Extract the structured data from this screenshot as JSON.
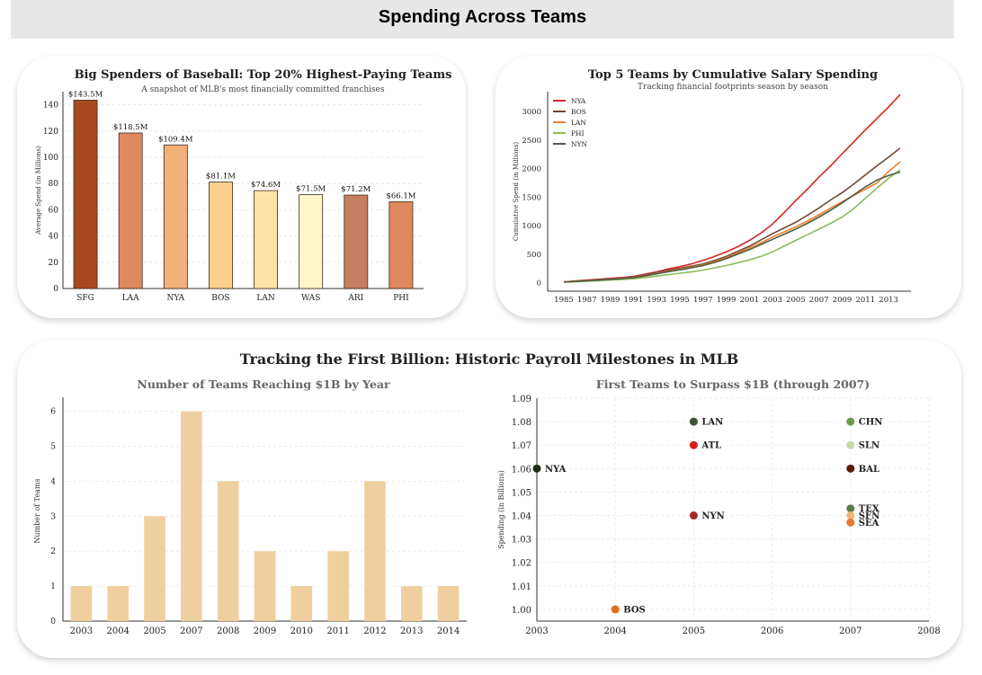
{
  "banner": {
    "title": "Spending Across Teams"
  },
  "section2": {
    "title": "Tracking the First Billion: Historic Payroll Milestones in MLB"
  },
  "chart_data": [
    {
      "id": "top-spenders",
      "type": "bar",
      "title": "Big Spenders of Baseball: Top 20% Highest-Paying Teams",
      "subtitle": "A snapshot of MLB's most financially committed franchises",
      "xlabel": "",
      "ylabel": "Average Spend (in Millions)",
      "categories": [
        "SFG",
        "LAA",
        "NYA",
        "BOS",
        "LAN",
        "WAS",
        "ARI",
        "PHI"
      ],
      "values": [
        143.5,
        118.5,
        109.4,
        81.1,
        74.6,
        71.5,
        71.2,
        66.1
      ],
      "data_labels": [
        "$143.5M",
        "$118.5M",
        "$109.4M",
        "$81.1M",
        "$74.6M",
        "$71.5M",
        "$71.2M",
        "$66.1M"
      ],
      "colors": [
        "#a84a1e",
        "#e0895e",
        "#f2b07a",
        "#fccf8c",
        "#fde3a8",
        "#fff5c8",
        "#c47f60",
        "#e0895e"
      ],
      "ylim": [
        0,
        150
      ],
      "yticks": [
        0,
        20,
        40,
        60,
        80,
        100,
        120,
        140
      ],
      "grid": true
    },
    {
      "id": "cumulative-salary",
      "type": "line",
      "title": "Top 5 Teams by Cumulative Salary Spending",
      "subtitle": "Tracking financial footprints season by season",
      "xlabel": "",
      "ylabel": "Cumulative Spend (in Millions)",
      "x": [
        1985,
        1986,
        1987,
        1988,
        1989,
        1990,
        1991,
        1992,
        1993,
        1994,
        1995,
        1996,
        1997,
        1998,
        1999,
        2000,
        2001,
        2002,
        2003,
        2004,
        2005,
        2006,
        2007,
        2008,
        2009,
        2010,
        2011,
        2012,
        2013,
        2014
      ],
      "series": [
        {
          "name": "NYA",
          "color": "#d62728",
          "values": [
            15,
            30,
            45,
            60,
            75,
            90,
            110,
            150,
            190,
            240,
            280,
            330,
            390,
            460,
            540,
            630,
            740,
            870,
            1030,
            1230,
            1440,
            1640,
            1850,
            2050,
            2260,
            2470,
            2680,
            2880,
            3080,
            3300
          ]
        },
        {
          "name": "BOS",
          "color": "#6b4a3a",
          "values": [
            12,
            25,
            38,
            52,
            65,
            78,
            95,
            130,
            175,
            215,
            250,
            290,
            330,
            390,
            460,
            550,
            640,
            750,
            860,
            960,
            1060,
            1180,
            1310,
            1450,
            1580,
            1730,
            1890,
            2050,
            2200,
            2360
          ]
        },
        {
          "name": "LAN",
          "color": "#f07f2a",
          "values": [
            12,
            24,
            36,
            48,
            60,
            72,
            88,
            120,
            160,
            200,
            235,
            270,
            310,
            370,
            440,
            520,
            610,
            700,
            800,
            890,
            980,
            1080,
            1190,
            1310,
            1420,
            1530,
            1640,
            1750,
            1950,
            2120
          ]
        },
        {
          "name": "PHI",
          "color": "#8cba5c",
          "values": [
            8,
            16,
            25,
            35,
            45,
            55,
            68,
            90,
            115,
            140,
            165,
            190,
            220,
            260,
            300,
            350,
            400,
            460,
            540,
            640,
            740,
            840,
            940,
            1040,
            1150,
            1300,
            1480,
            1660,
            1830,
            1980
          ]
        },
        {
          "name": "NYN",
          "color": "#4f5e43",
          "values": [
            11,
            22,
            34,
            46,
            58,
            70,
            86,
            118,
            155,
            192,
            225,
            260,
            300,
            355,
            420,
            500,
            580,
            670,
            760,
            850,
            940,
            1040,
            1150,
            1270,
            1400,
            1540,
            1680,
            1800,
            1880,
            1940
          ]
        }
      ],
      "xticks": [
        1985,
        1987,
        1989,
        1991,
        1993,
        1995,
        1997,
        1999,
        2001,
        2003,
        2005,
        2007,
        2009,
        2011,
        2013
      ],
      "ylim": [
        -150,
        3350
      ],
      "yticks": [
        0,
        500,
        1000,
        1500,
        2000,
        2500,
        3000
      ],
      "legend": "top-left",
      "grid": false
    },
    {
      "id": "teams-reaching-1b",
      "type": "bar",
      "title": "Number of Teams Reaching $1B by Year",
      "xlabel": "",
      "ylabel": "Number of Teams",
      "categories": [
        "2003",
        "2004",
        "2005",
        "2007",
        "2008",
        "2009",
        "2010",
        "2011",
        "2012",
        "2013",
        "2014"
      ],
      "values": [
        1,
        1,
        3,
        6,
        4,
        2,
        1,
        2,
        4,
        1,
        1
      ],
      "color": "#f0cf9e",
      "ylim": [
        0,
        6.3
      ],
      "yticks": [
        0,
        1,
        2,
        3,
        4,
        5,
        6
      ],
      "grid": true
    },
    {
      "id": "first-teams-1b",
      "type": "scatter",
      "title": "First Teams to Surpass $1B (through 2007)",
      "xlabel": "",
      "ylabel": "Spending (in Billions)",
      "points": [
        {
          "label": "NYA",
          "x": 2003,
          "y": 1.06,
          "color": "#1e2e10"
        },
        {
          "label": "BOS",
          "x": 2004,
          "y": 1.0,
          "color": "#e06f1a"
        },
        {
          "label": "LAN",
          "x": 2005,
          "y": 1.08,
          "color": "#3e5232"
        },
        {
          "label": "ATL",
          "x": 2005,
          "y": 1.07,
          "color": "#d41c20"
        },
        {
          "label": "NYN",
          "x": 2005,
          "y": 1.04,
          "color": "#a52a2a"
        },
        {
          "label": "CHN",
          "x": 2007,
          "y": 1.08,
          "color": "#6c9a48"
        },
        {
          "label": "SLN",
          "x": 2007,
          "y": 1.07,
          "color": "#c2d9a8"
        },
        {
          "label": "BAL",
          "x": 2007,
          "y": 1.06,
          "color": "#5a1806"
        },
        {
          "label": "TEX",
          "x": 2007,
          "y": 1.043,
          "color": "#5a7f46"
        },
        {
          "label": "SFN",
          "x": 2007,
          "y": 1.04,
          "color": "#f5b679"
        },
        {
          "label": "SEA",
          "x": 2007,
          "y": 1.037,
          "color": "#e8792e"
        }
      ],
      "xlim": [
        2003,
        2008
      ],
      "xticks": [
        2003,
        2004,
        2005,
        2006,
        2007,
        2008
      ],
      "ylim": [
        0.995,
        1.09
      ],
      "yticks": [
        "1.00",
        "1.01",
        "1.02",
        "1.03",
        "1.04",
        "1.05",
        "1.06",
        "1.07",
        "1.08",
        "1.09"
      ],
      "grid": true
    }
  ]
}
